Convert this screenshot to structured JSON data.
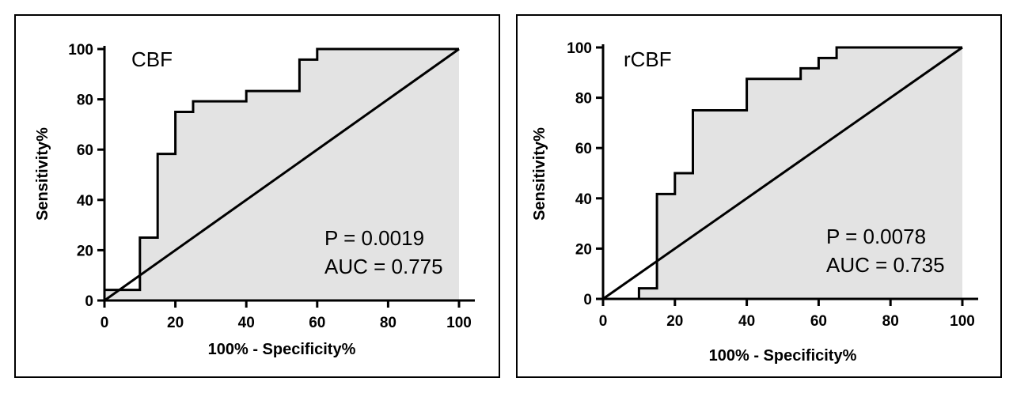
{
  "chart_data": [
    {
      "type": "line",
      "title": "",
      "panel_label": "CBF",
      "xlabel": "100% - Specificity%",
      "ylabel": "Sensitivity%",
      "xlim": [
        0,
        100
      ],
      "ylim": [
        0,
        100
      ],
      "x_ticks": [
        "0",
        "20",
        "40",
        "60",
        "80",
        "100"
      ],
      "y_ticks": [
        "0",
        "20",
        "40",
        "60",
        "80",
        "100"
      ],
      "series": [
        {
          "name": "",
          "x": [
            0,
            0,
            10,
            10,
            15,
            15,
            20,
            20,
            25,
            25,
            40,
            40,
            55,
            55,
            60,
            60,
            100
          ],
          "y": [
            0,
            4.2,
            4.2,
            25,
            25,
            58.3,
            58.3,
            75,
            75,
            79.2,
            79.2,
            83.3,
            83.3,
            95.8,
            95.8,
            100,
            100
          ]
        },
        {
          "name": "",
          "x": [
            0,
            100
          ],
          "y": [
            0,
            100
          ]
        }
      ],
      "annotations": [
        "P = 0.0019",
        "AUC = 0.775"
      ],
      "area_fill": "#e3e3e3",
      "line_color": "#000000",
      "grid": false
    },
    {
      "type": "line",
      "title": "",
      "panel_label": "rCBF",
      "xlabel": "100% - Specificity%",
      "ylabel": "Sensitivity%",
      "xlim": [
        0,
        100
      ],
      "ylim": [
        0,
        100
      ],
      "x_ticks": [
        "0",
        "20",
        "40",
        "60",
        "80",
        "100"
      ],
      "y_ticks": [
        "0",
        "20",
        "40",
        "60",
        "80",
        "100"
      ],
      "series": [
        {
          "name": "",
          "x": [
            0,
            10,
            10,
            15,
            15,
            20,
            20,
            25,
            25,
            40,
            40,
            55,
            55,
            60,
            60,
            65,
            65,
            100
          ],
          "y": [
            0,
            0,
            4.2,
            4.2,
            41.7,
            41.7,
            50,
            50,
            75,
            75,
            87.5,
            87.5,
            91.7,
            91.7,
            95.8,
            95.8,
            100,
            100
          ]
        },
        {
          "name": "",
          "x": [
            0,
            100
          ],
          "y": [
            0,
            100
          ]
        }
      ],
      "annotations": [
        "P = 0.0078",
        "AUC = 0.735"
      ],
      "area_fill": "#e3e3e3",
      "line_color": "#000000",
      "grid": false
    }
  ]
}
